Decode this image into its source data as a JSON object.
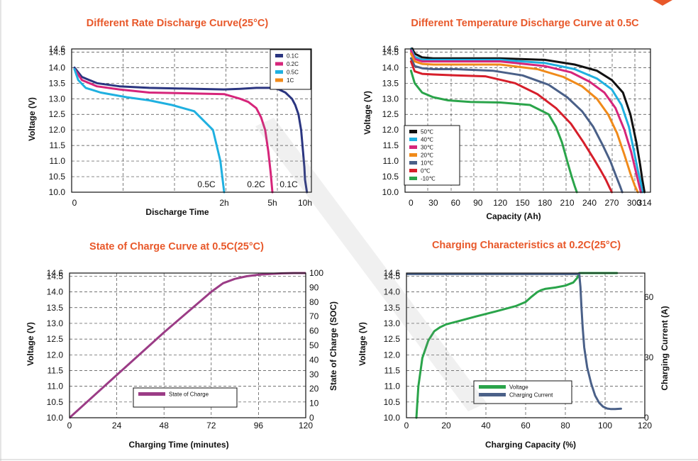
{
  "chart_data": [
    {
      "type": "line",
      "title": "Different Rate Discharge Curve(25°C)",
      "xlabel": "Discharge Time",
      "ylabel": "Voltage (V)",
      "x_ticks": [
        "0",
        "2h",
        "5h",
        "10h"
      ],
      "y_ticks": [
        "10.0",
        "10.5",
        "11.0",
        "11.5",
        "12.0",
        "12.5",
        "13.0",
        "13.5",
        "14.0",
        "14.5",
        "14.6"
      ],
      "ylim": [
        10.0,
        14.6
      ],
      "x_range_hours": [
        0,
        10.3
      ],
      "grid": true,
      "legend_position": "top-right",
      "annotations": [
        "0.5C",
        "0.2C",
        "0.1C"
      ],
      "series": [
        {
          "name": "0.1C",
          "color": "#2a3580",
          "x": [
            0,
            0.1,
            0.3,
            0.6,
            1.0,
            2,
            3,
            4,
            5,
            6,
            7,
            7.5,
            8.0,
            8.5,
            9.0,
            9.4,
            9.7,
            9.9,
            10.0,
            10.1
          ],
          "y": [
            14.0,
            13.7,
            13.5,
            13.4,
            13.35,
            13.3,
            13.32,
            13.35,
            13.35,
            13.3,
            13.2,
            13.1,
            13.0,
            12.8,
            12.5,
            12.0,
            11.3,
            10.8,
            10.4,
            10.0
          ]
        },
        {
          "name": "0.2C",
          "color": "#d6257a",
          "x": [
            0,
            0.1,
            0.3,
            0.6,
            1,
            2,
            3,
            3.5,
            4.0,
            4.3,
            4.55,
            4.75,
            4.9,
            5.0
          ],
          "y": [
            13.95,
            13.6,
            13.4,
            13.3,
            13.2,
            13.15,
            13.0,
            12.9,
            12.7,
            12.4,
            12.0,
            11.3,
            10.6,
            10.0
          ]
        },
        {
          "name": "0.5C",
          "color": "#1fb0e0",
          "x": [
            0,
            0.05,
            0.15,
            0.35,
            0.7,
            1.0,
            1.3,
            1.6,
            1.85,
            1.95,
            2.0
          ],
          "y": [
            13.95,
            13.6,
            13.35,
            13.2,
            13.05,
            12.95,
            12.8,
            12.6,
            12.0,
            11.0,
            10.0
          ]
        },
        {
          "name": "1C",
          "color": "#f08a1a",
          "x": [],
          "y": []
        }
      ]
    },
    {
      "type": "line",
      "title": "Different Temperature Discharge Curve at 0.5C",
      "xlabel": "Capacity (Ah)",
      "ylabel": "Voltage (V)",
      "x_ticks": [
        "0",
        "30",
        "60",
        "90",
        "120",
        "150",
        "180",
        "210",
        "240",
        "270",
        "300",
        "314"
      ],
      "x_tick_values": [
        0,
        30,
        60,
        90,
        120,
        150,
        180,
        210,
        240,
        270,
        300,
        314
      ],
      "y_ticks": [
        "10.0",
        "10.5",
        "11.0",
        "11.5",
        "12.0",
        "12.5",
        "13.0",
        "13.5",
        "14.0",
        "14.5",
        "14.6"
      ],
      "ylim": [
        10.0,
        14.6
      ],
      "xlim": [
        -8,
        322
      ],
      "grid": true,
      "legend_position": "bottom-left",
      "series": [
        {
          "name": "50℃",
          "color": "#111111",
          "x": [
            0,
            5,
            15,
            30,
            60,
            120,
            180,
            220,
            250,
            270,
            285,
            295,
            303,
            308,
            311,
            314
          ],
          "y": [
            14.7,
            14.45,
            14.33,
            14.3,
            14.3,
            14.3,
            14.25,
            14.1,
            13.9,
            13.6,
            13.2,
            12.5,
            11.6,
            10.9,
            10.4,
            10.0
          ]
        },
        {
          "name": "40℃",
          "color": "#1fb0e0",
          "x": [
            0,
            5,
            15,
            30,
            60,
            120,
            180,
            220,
            250,
            270,
            283,
            293,
            300,
            305,
            309,
            311
          ],
          "y": [
            14.6,
            14.35,
            14.25,
            14.25,
            14.25,
            14.25,
            14.15,
            13.95,
            13.65,
            13.3,
            12.8,
            12.1,
            11.3,
            10.7,
            10.3,
            10.0
          ]
        },
        {
          "name": "30℃",
          "color": "#d6257a",
          "x": [
            0,
            5,
            15,
            30,
            60,
            120,
            180,
            215,
            240,
            260,
            275,
            287,
            296,
            302,
            306,
            309
          ],
          "y": [
            14.55,
            14.28,
            14.2,
            14.2,
            14.2,
            14.2,
            14.05,
            13.85,
            13.55,
            13.2,
            12.7,
            12.0,
            11.3,
            10.7,
            10.3,
            10.0
          ]
        },
        {
          "name": "20℃",
          "color": "#f08a1a",
          "x": [
            0,
            5,
            15,
            30,
            60,
            120,
            170,
            205,
            230,
            250,
            265,
            277,
            287,
            295,
            301,
            305
          ],
          "y": [
            14.45,
            14.2,
            14.12,
            14.1,
            14.1,
            14.1,
            13.95,
            13.7,
            13.4,
            13.0,
            12.5,
            11.9,
            11.2,
            10.6,
            10.2,
            10.0
          ]
        },
        {
          "name": "10℃",
          "color": "#4a6088",
          "x": [
            0,
            5,
            15,
            30,
            60,
            110,
            150,
            185,
            210,
            230,
            245,
            258,
            268,
            276,
            281,
            284
          ],
          "y": [
            14.3,
            14.05,
            13.98,
            13.95,
            13.95,
            13.9,
            13.75,
            13.45,
            13.05,
            12.6,
            12.1,
            11.5,
            11.0,
            10.5,
            10.2,
            10.0
          ]
        },
        {
          "name": "0℃",
          "color": "#d61e2a",
          "x": [
            0,
            5,
            15,
            30,
            60,
            100,
            140,
            170,
            195,
            215,
            232,
            245,
            255,
            262,
            267,
            270
          ],
          "y": [
            14.2,
            13.88,
            13.8,
            13.78,
            13.75,
            13.72,
            13.5,
            13.15,
            12.7,
            12.2,
            11.6,
            11.1,
            10.7,
            10.4,
            10.15,
            10.0
          ]
        },
        {
          "name": "-10℃",
          "color": "#2aa44a",
          "x": [
            0,
            5,
            15,
            30,
            50,
            80,
            120,
            160,
            185,
            195,
            203,
            210,
            216,
            220,
            223
          ],
          "y": [
            13.9,
            13.5,
            13.2,
            13.05,
            12.95,
            12.9,
            12.88,
            12.8,
            12.5,
            12.1,
            11.6,
            11.0,
            10.5,
            10.2,
            10.0
          ]
        }
      ]
    },
    {
      "type": "line",
      "title": "State of Charge Curve at 0.5C(25°C)",
      "xlabel": "Charging Time (minutes)",
      "ylabel": "Voltage (V)",
      "y2label": "State of Charge (SOC)",
      "x_ticks": [
        "0",
        "24",
        "48",
        "72",
        "96",
        "120"
      ],
      "x_tick_values": [
        0,
        24,
        48,
        72,
        96,
        120
      ],
      "y_ticks": [
        "10.0",
        "10.5",
        "11.0",
        "11.5",
        "12.0",
        "12.5",
        "13.0",
        "13.5",
        "14.0",
        "14.5",
        "14.6"
      ],
      "y2_ticks": [
        "0",
        "10",
        "20",
        "30",
        "40",
        "50",
        "60",
        "70",
        "80",
        "90",
        "100"
      ],
      "ylim": [
        10.0,
        14.6
      ],
      "y2lim": [
        0,
        100
      ],
      "xlim": [
        0,
        120
      ],
      "grid": true,
      "legend_position": "bottom-right",
      "series": [
        {
          "name": "State of Charge",
          "color": "#9b3c86",
          "axis": "y2",
          "x": [
            0,
            24,
            48,
            72,
            78,
            84,
            90,
            96,
            102,
            108,
            114,
            120
          ],
          "y": [
            0,
            29.5,
            59,
            87,
            93,
            96,
            97.8,
            98.8,
            99.4,
            99.8,
            100,
            100
          ]
        }
      ]
    },
    {
      "type": "line",
      "title": "Charging Characteristics at 0.2C(25°C)",
      "xlabel": "Charging Capacity (%)",
      "ylabel": "Voltage (V)",
      "y2label": "Charging Current (A)",
      "x_ticks": [
        "0",
        "20",
        "40",
        "60",
        "80",
        "100",
        "120"
      ],
      "x_tick_values": [
        0,
        20,
        40,
        60,
        80,
        100,
        120
      ],
      "y_ticks": [
        "10.0",
        "10.5",
        "11.0",
        "11.5",
        "12.0",
        "12.5",
        "13.0",
        "13.5",
        "14.0",
        "14.5",
        "14.6"
      ],
      "y2_ticks": [
        "0",
        "30",
        "60"
      ],
      "ylim": [
        10.0,
        14.6
      ],
      "y2lim": [
        0,
        72
      ],
      "xlim": [
        0,
        120
      ],
      "grid": true,
      "legend_position": "bottom-center",
      "series": [
        {
          "name": "Voltage",
          "color": "#2aa44a",
          "axis": "y1",
          "x": [
            5,
            6,
            8,
            11,
            14,
            17,
            20,
            25,
            35,
            45,
            55,
            60,
            63,
            66,
            68,
            70,
            75,
            80,
            84,
            86,
            87,
            88,
            89,
            95,
            105,
            106
          ],
          "y": [
            10.0,
            11.0,
            11.9,
            12.45,
            12.75,
            12.88,
            12.97,
            13.05,
            13.22,
            13.38,
            13.55,
            13.68,
            13.85,
            14.0,
            14.06,
            14.1,
            14.14,
            14.2,
            14.3,
            14.45,
            14.6,
            14.6,
            14.6,
            14.6,
            14.6,
            14.6
          ]
        },
        {
          "name": "Charging Current",
          "color": "#4a6088",
          "axis": "y2",
          "x": [
            0,
            80,
            87,
            87.6,
            88.1,
            88.7,
            89.5,
            91,
            93,
            95,
            97,
            99,
            101,
            103,
            105,
            108
          ],
          "y": [
            71.5,
            71.5,
            71.5,
            65,
            55,
            45,
            35,
            25,
            17,
            11,
            7.5,
            5.5,
            4.6,
            4.3,
            4.3,
            4.5
          ]
        }
      ]
    }
  ]
}
